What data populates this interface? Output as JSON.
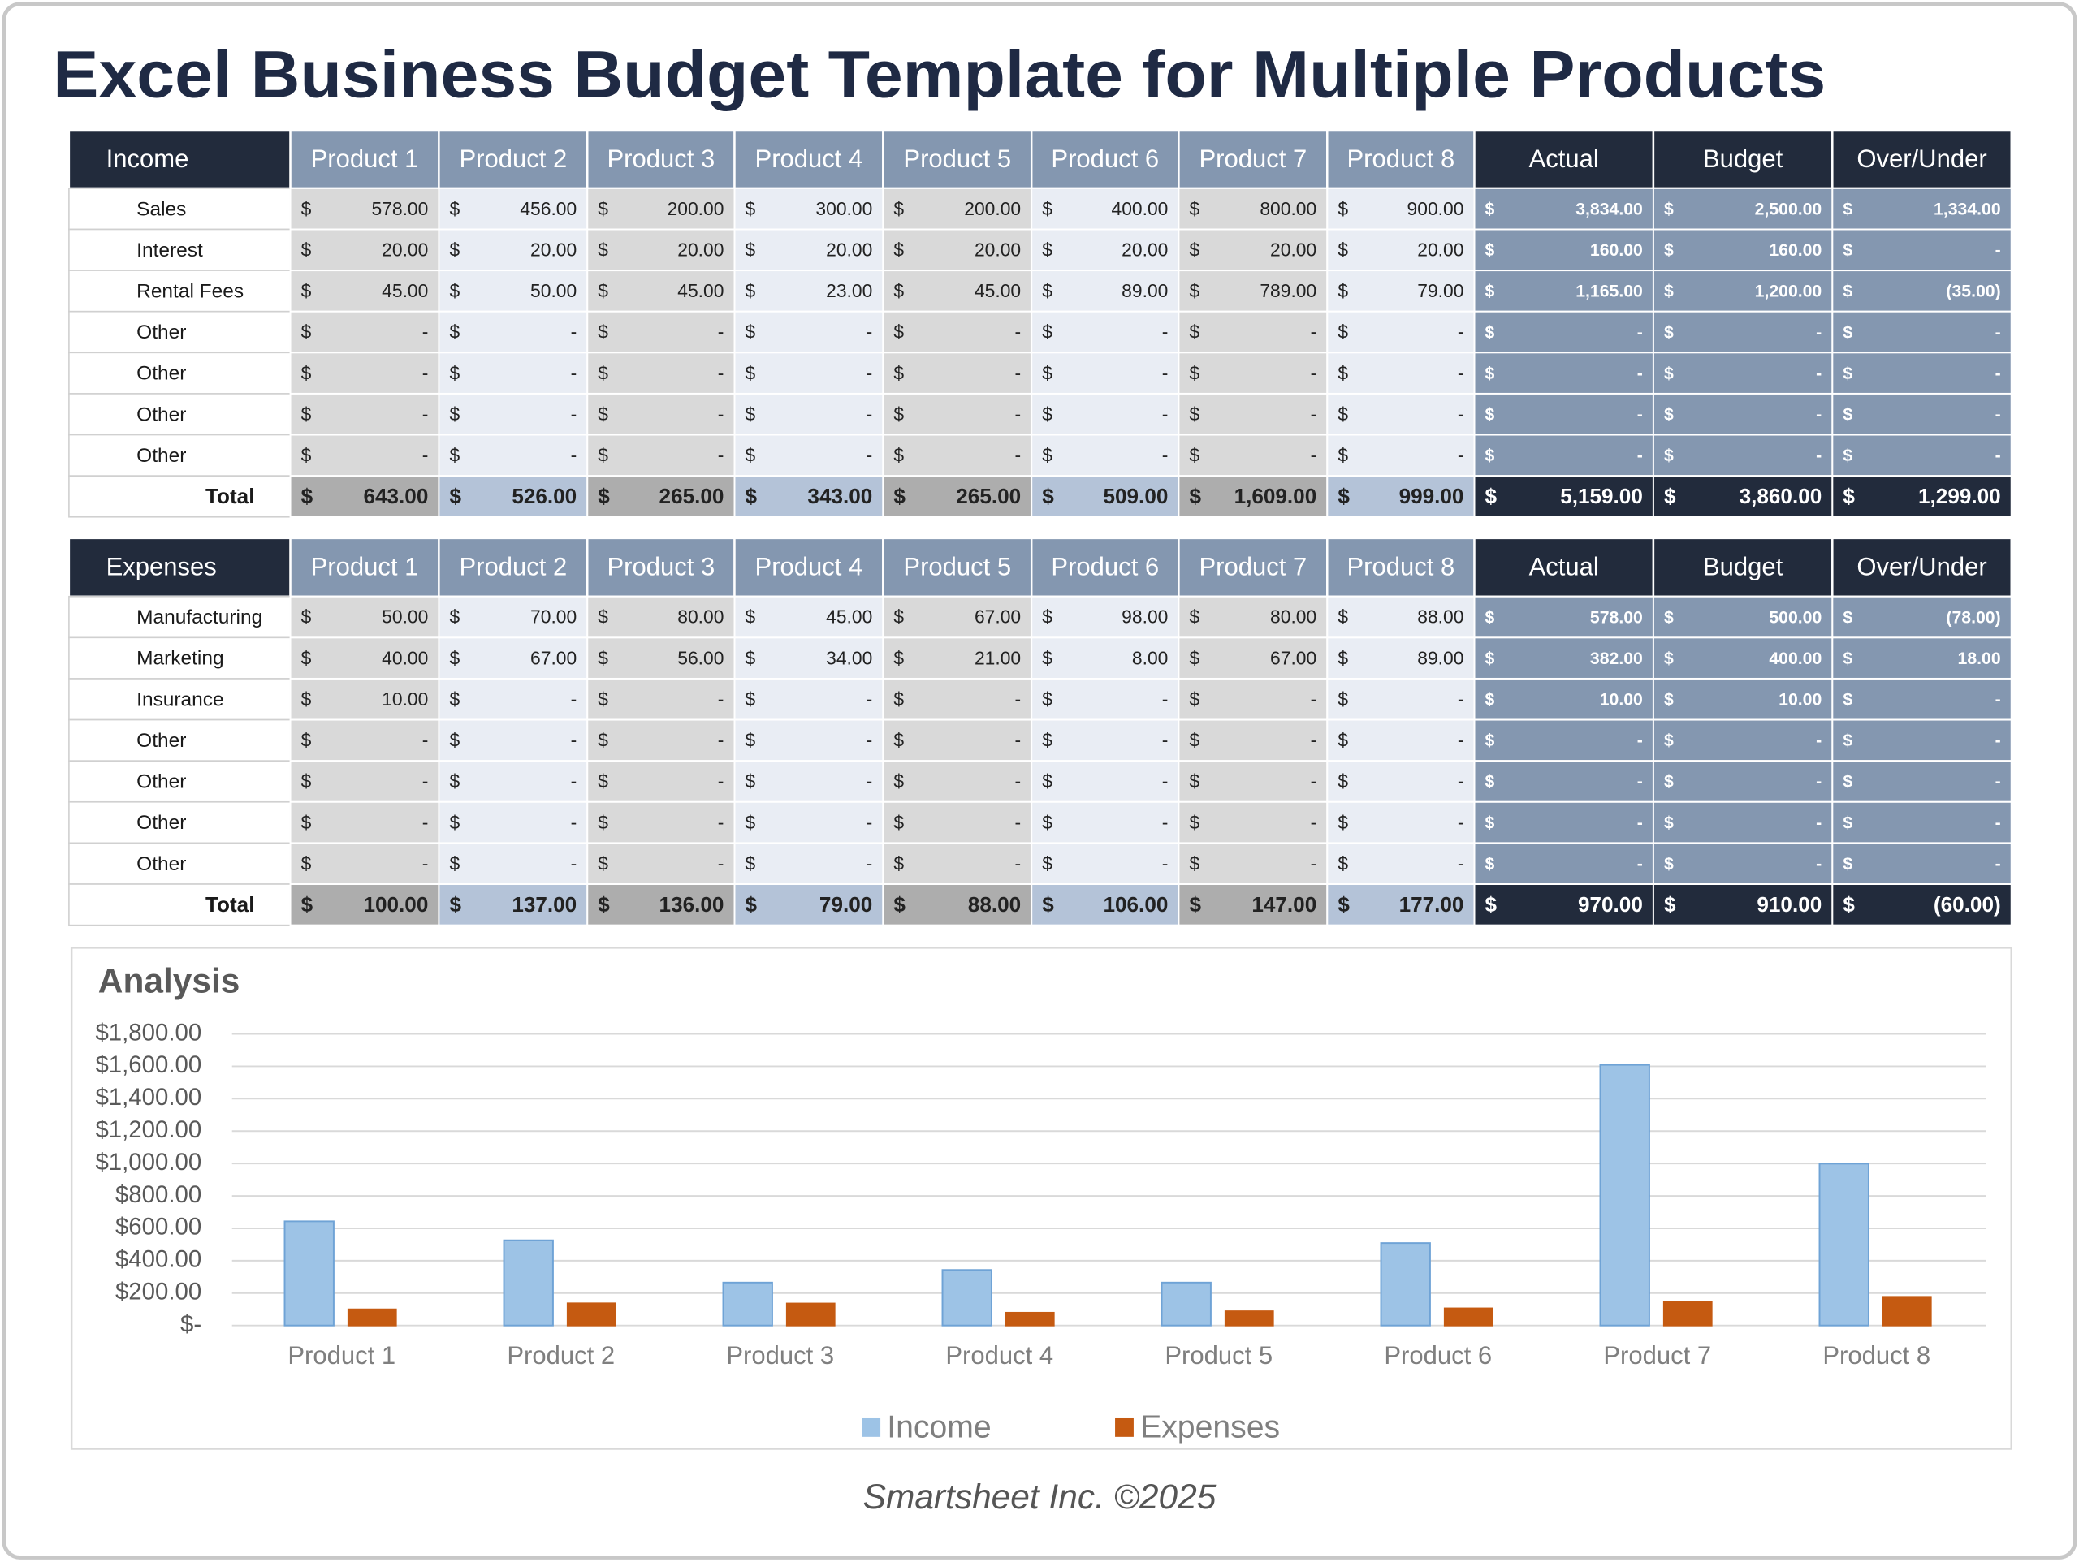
{
  "title": "Excel Business Budget Template for Multiple Products",
  "currency": "$",
  "income_table": {
    "header": [
      "Income",
      "Product 1",
      "Product 2",
      "Product 3",
      "Product 4",
      "Product 5",
      "Product 6",
      "Product 7",
      "Product 8",
      "Actual",
      "Budget",
      "Over/Under"
    ],
    "rows": [
      [
        "Sales",
        "578.00",
        "456.00",
        "200.00",
        "300.00",
        "200.00",
        "400.00",
        "800.00",
        "900.00",
        "3,834.00",
        "2,500.00",
        "1,334.00"
      ],
      [
        "Interest",
        "20.00",
        "20.00",
        "20.00",
        "20.00",
        "20.00",
        "20.00",
        "20.00",
        "20.00",
        "160.00",
        "160.00",
        "-"
      ],
      [
        "Rental Fees",
        "45.00",
        "50.00",
        "45.00",
        "23.00",
        "45.00",
        "89.00",
        "789.00",
        "79.00",
        "1,165.00",
        "1,200.00",
        "(35.00)"
      ],
      [
        "Other",
        "-",
        "-",
        "-",
        "-",
        "-",
        "-",
        "-",
        "-",
        "-",
        "-",
        "-"
      ],
      [
        "Other",
        "-",
        "-",
        "-",
        "-",
        "-",
        "-",
        "-",
        "-",
        "-",
        "-",
        "-"
      ],
      [
        "Other",
        "-",
        "-",
        "-",
        "-",
        "-",
        "-",
        "-",
        "-",
        "-",
        "-",
        "-"
      ],
      [
        "Other",
        "-",
        "-",
        "-",
        "-",
        "-",
        "-",
        "-",
        "-",
        "-",
        "-",
        "-"
      ],
      [
        "Total",
        "643.00",
        "526.00",
        "265.00",
        "343.00",
        "265.00",
        "509.00",
        "1,609.00",
        "999.00",
        "5,159.00",
        "3,860.00",
        "1,299.00"
      ]
    ]
  },
  "expenses_table": {
    "header": [
      "Expenses",
      "Product 1",
      "Product 2",
      "Product 3",
      "Product 4",
      "Product 5",
      "Product 6",
      "Product 7",
      "Product 8",
      "Actual",
      "Budget",
      "Over/Under"
    ],
    "rows": [
      [
        "Manufacturing",
        "50.00",
        "70.00",
        "80.00",
        "45.00",
        "67.00",
        "98.00",
        "80.00",
        "88.00",
        "578.00",
        "500.00",
        "(78.00)"
      ],
      [
        "Marketing",
        "40.00",
        "67.00",
        "56.00",
        "34.00",
        "21.00",
        "8.00",
        "67.00",
        "89.00",
        "382.00",
        "400.00",
        "18.00"
      ],
      [
        "Insurance",
        "10.00",
        "-",
        "-",
        "-",
        "-",
        "-",
        "-",
        "-",
        "10.00",
        "10.00",
        "-"
      ],
      [
        "Other",
        "-",
        "-",
        "-",
        "-",
        "-",
        "-",
        "-",
        "-",
        "-",
        "-",
        "-"
      ],
      [
        "Other",
        "-",
        "-",
        "-",
        "-",
        "-",
        "-",
        "-",
        "-",
        "-",
        "-",
        "-"
      ],
      [
        "Other",
        "-",
        "-",
        "-",
        "-",
        "-",
        "-",
        "-",
        "-",
        "-",
        "-",
        "-"
      ],
      [
        "Other",
        "-",
        "-",
        "-",
        "-",
        "-",
        "-",
        "-",
        "-",
        "-",
        "-",
        "-"
      ],
      [
        "Total",
        "100.00",
        "137.00",
        "136.00",
        "79.00",
        "88.00",
        "106.00",
        "147.00",
        "177.00",
        "970.00",
        "910.00",
        "(60.00)"
      ]
    ]
  },
  "chart_data": {
    "type": "bar",
    "title": "Analysis",
    "categories": [
      "Product 1",
      "Product 2",
      "Product 3",
      "Product 4",
      "Product 5",
      "Product 6",
      "Product 7",
      "Product 8"
    ],
    "series": [
      {
        "name": "Income",
        "color": "#9dc3e6",
        "values": [
          643,
          526,
          265,
          343,
          265,
          509,
          1609,
          999
        ]
      },
      {
        "name": "Expenses",
        "color": "#c55a11",
        "values": [
          100,
          137,
          136,
          79,
          88,
          106,
          147,
          177
        ]
      }
    ],
    "ylim": [
      0,
      1800
    ],
    "yticks": [
      {
        "value": 0,
        "label": "$-"
      },
      {
        "value": 200,
        "label": "$200.00"
      },
      {
        "value": 400,
        "label": "$400.00"
      },
      {
        "value": 600,
        "label": "$600.00"
      },
      {
        "value": 800,
        "label": "$800.00"
      },
      {
        "value": 1000,
        "label": "$1,000.00"
      },
      {
        "value": 1200,
        "label": "$1,200.00"
      },
      {
        "value": 1400,
        "label": "$1,400.00"
      },
      {
        "value": 1600,
        "label": "$1,600.00"
      },
      {
        "value": 1800,
        "label": "$1,800.00"
      }
    ],
    "grid": true,
    "legend": "bottom"
  },
  "footer": "Smartsheet Inc. ©2025"
}
